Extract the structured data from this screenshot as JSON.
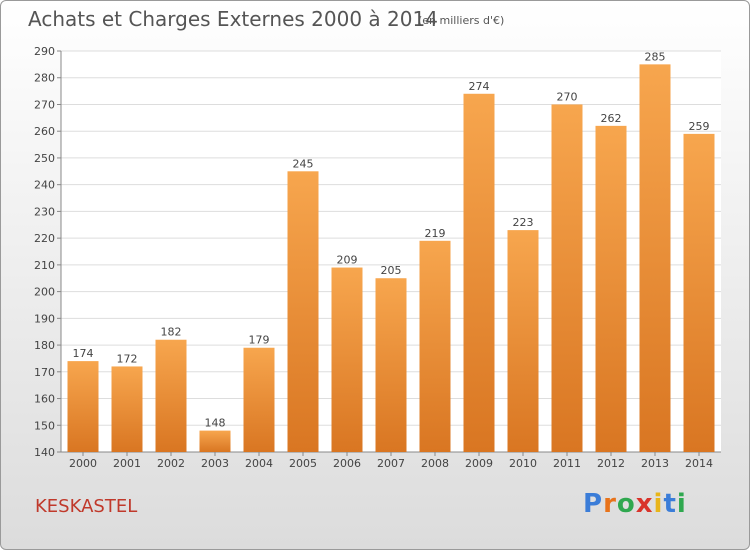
{
  "title": "Achats et Charges Externes 2000 à 2014",
  "subtitle": "(en milliers d'€)",
  "commune": "KESKASTEL",
  "logo": "Proxiti",
  "colors": {
    "bar_light": "#f7a64e",
    "bar_dark": "#d97622",
    "grid": "#dddddd",
    "commune": "#c0392b"
  },
  "chart_data": {
    "type": "bar",
    "categories": [
      "2000",
      "2001",
      "2002",
      "2003",
      "2004",
      "2005",
      "2006",
      "2007",
      "2008",
      "2009",
      "2010",
      "2011",
      "2012",
      "2013",
      "2014"
    ],
    "values": [
      174,
      172,
      182,
      148,
      179,
      245,
      209,
      205,
      219,
      274,
      223,
      270,
      262,
      285,
      259
    ],
    "ylim": [
      140,
      290
    ],
    "yticks": [
      140,
      150,
      160,
      170,
      180,
      190,
      200,
      210,
      220,
      230,
      240,
      250,
      260,
      270,
      280,
      290
    ],
    "grid": true
  }
}
